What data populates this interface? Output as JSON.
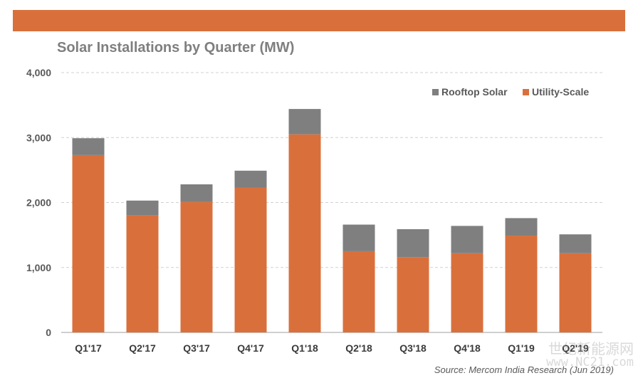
{
  "header": {
    "band_color": "#d9703c"
  },
  "chart_data": {
    "type": "bar",
    "stacked": true,
    "title": "Solar Installations by Quarter (MW)",
    "xlabel": "",
    "ylabel": "",
    "categories": [
      "Q1'17",
      "Q2'17",
      "Q3'17",
      "Q4'17",
      "Q1'18",
      "Q2'18",
      "Q3'18",
      "Q4'18",
      "Q1'19",
      "Q2'19"
    ],
    "series": [
      {
        "name": "Utility-Scale",
        "color": "#d9703c",
        "values": [
          2730,
          1800,
          2010,
          2230,
          3050,
          1250,
          1160,
          1220,
          1490,
          1220
        ]
      },
      {
        "name": "Rooftop Solar",
        "color": "#7f7f7f",
        "values": [
          260,
          230,
          270,
          260,
          390,
          410,
          430,
          420,
          270,
          290
        ]
      }
    ],
    "ylim": [
      0,
      4000
    ],
    "yticks": [
      0,
      1000,
      2000,
      3000,
      4000
    ],
    "ytick_labels": [
      "0",
      "1,000",
      "2,000",
      "3,000",
      "4,000"
    ],
    "grid": true,
    "legend_position": "top-right",
    "legend_order": [
      "Rooftop Solar",
      "Utility-Scale"
    ],
    "source": "Source: Mercom India Research (Jun 2019)"
  },
  "watermark": {
    "line1": "世纪新能源网",
    "line2": "www.NC21.com"
  }
}
